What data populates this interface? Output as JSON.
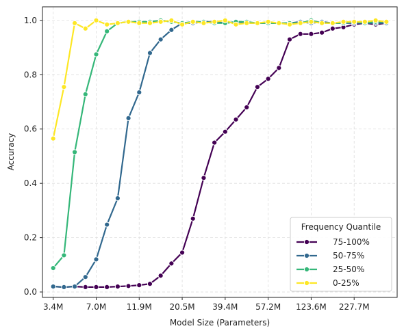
{
  "chart_data": {
    "type": "line",
    "xlabel": "Model Size (Parameters)",
    "ylabel": "Accuracy",
    "ylim": [
      -0.02,
      1.05
    ],
    "x_tick_labels": [
      "3.4M",
      "7.0M",
      "11.9M",
      "20.5M",
      "39.4M",
      "57.2M",
      "123.6M",
      "227.7M"
    ],
    "x_tick_positions": [
      1,
      5,
      9,
      13,
      17,
      21,
      25,
      29
    ],
    "y_ticks": [
      0.0,
      0.2,
      0.4,
      0.6,
      0.8,
      1.0
    ],
    "grid": true,
    "legend": {
      "title": "Frequency Quantile",
      "placement": "lower-right"
    },
    "x": [
      1,
      2,
      3,
      4,
      5,
      6,
      7,
      8,
      9,
      10,
      11,
      12,
      13,
      14,
      15,
      16,
      17,
      18,
      19,
      20,
      21,
      22,
      23,
      24,
      25,
      26,
      27,
      28,
      29,
      30,
      31,
      32
    ],
    "series": [
      {
        "name": "75-100%",
        "color": "#440154",
        "values": [
          0.02,
          0.018,
          0.02,
          0.018,
          0.018,
          0.018,
          0.02,
          0.022,
          0.025,
          0.03,
          0.06,
          0.105,
          0.145,
          0.27,
          0.42,
          0.55,
          0.59,
          0.635,
          0.68,
          0.755,
          0.785,
          0.825,
          0.93,
          0.95,
          0.95,
          0.955,
          0.97,
          0.975,
          0.985,
          0.99,
          0.985,
          0.99
        ]
      },
      {
        "name": "50-75%",
        "color": "#31688e",
        "values": [
          0.02,
          0.018,
          0.02,
          0.055,
          0.12,
          0.248,
          0.345,
          0.64,
          0.735,
          0.88,
          0.93,
          0.965,
          0.99,
          0.99,
          0.995,
          0.995,
          0.99,
          0.995,
          0.99,
          0.99,
          0.99,
          0.99,
          0.99,
          0.995,
          0.99,
          0.995,
          0.99,
          0.99,
          0.99,
          0.99,
          0.99,
          0.99
        ]
      },
      {
        "name": "25-50%",
        "color": "#35b779",
        "values": [
          0.088,
          0.135,
          0.515,
          0.728,
          0.875,
          0.96,
          0.99,
          0.995,
          0.995,
          0.995,
          1.0,
          0.995,
          0.99,
          0.995,
          0.995,
          0.99,
          0.99,
          0.995,
          0.995,
          0.99,
          0.99,
          0.99,
          0.99,
          0.99,
          1.0,
          0.99,
          0.99,
          0.99,
          0.995,
          0.99,
          0.995,
          0.995
        ]
      },
      {
        "name": "0-25%",
        "color": "#fde725",
        "values": [
          0.565,
          0.755,
          0.99,
          0.97,
          1.0,
          0.985,
          0.99,
          0.995,
          0.99,
          0.99,
          0.995,
          1.0,
          0.985,
          0.995,
          0.99,
          0.995,
          1.0,
          0.985,
          0.99,
          0.99,
          0.995,
          0.99,
          0.985,
          0.99,
          0.995,
          0.99,
          0.99,
          0.995,
          0.995,
          0.995,
          1.0,
          0.995
        ]
      }
    ]
  }
}
